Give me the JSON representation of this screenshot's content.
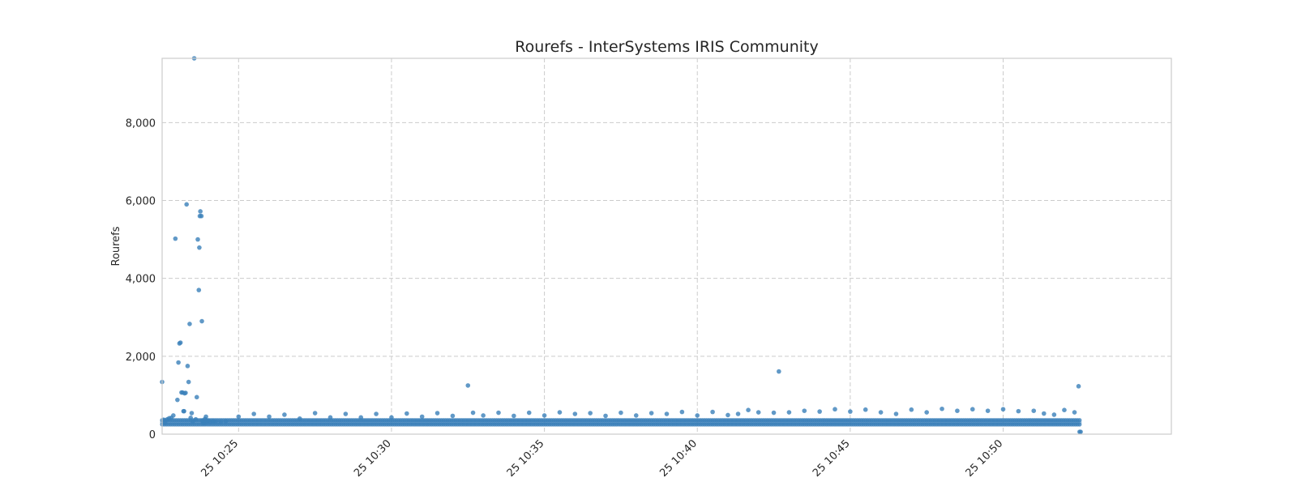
{
  "chart_data": {
    "type": "scatter",
    "title": "Rourefs - InterSystems IRIS Community",
    "xlabel": "",
    "ylabel": "Rourefs",
    "x_axis": {
      "kind": "datetime",
      "start": "10:22:30",
      "end": "10:55:30",
      "ticks": [
        "25 10:25",
        "25 10:30",
        "25 10:35",
        "25 10:40",
        "25 10:45",
        "25 10:50"
      ]
    },
    "y_axis": {
      "ylim": [
        0,
        9650
      ],
      "ticks": [
        0,
        2000,
        4000,
        6000,
        8000
      ],
      "tick_labels": [
        "0",
        "2,000",
        "4,000",
        "6,000",
        "8,000"
      ]
    },
    "grid": true,
    "grid_style": "dashed",
    "legend": "none",
    "marker_color": "#3a7fb9",
    "grid_color": "#cccccc",
    "frame_color": "#cccccc",
    "series": [
      {
        "x": [
          "10:22:30",
          "10:22:33",
          "10:22:36",
          "10:22:40",
          "10:22:44",
          "10:22:48",
          "10:22:52",
          "10:22:56",
          "10:23:00",
          "10:23:02",
          "10:23:04",
          "10:23:06",
          "10:23:08",
          "10:23:10",
          "10:23:12",
          "10:23:13",
          "10:23:14",
          "10:23:16",
          "10:23:18",
          "10:23:20",
          "10:23:22",
          "10:23:24",
          "10:23:26",
          "10:23:28",
          "10:23:30",
          "10:23:33",
          "10:23:36",
          "10:23:38",
          "10:23:40",
          "10:23:42",
          "10:23:43",
          "10:23:44",
          "10:23:45",
          "10:23:47",
          "10:23:48",
          "10:23:49",
          "10:23:50",
          "10:23:52",
          "10:23:54",
          "10:23:56",
          "10:23:58",
          "10:24:00",
          "10:24:05",
          "10:24:10",
          "10:24:15",
          "10:24:25",
          "10:24:35",
          "10:25:00",
          "10:25:30",
          "10:26:00",
          "10:26:30",
          "10:27:00",
          "10:27:30",
          "10:28:00",
          "10:28:30",
          "10:29:00",
          "10:29:30",
          "10:30:00",
          "10:30:30",
          "10:31:00",
          "10:31:30",
          "10:32:00",
          "10:32:30",
          "10:32:40",
          "10:33:00",
          "10:33:30",
          "10:34:00",
          "10:34:30",
          "10:35:00",
          "10:35:30",
          "10:36:00",
          "10:36:30",
          "10:37:00",
          "10:37:30",
          "10:38:00",
          "10:38:30",
          "10:39:00",
          "10:39:30",
          "10:40:00",
          "10:40:30",
          "10:41:00",
          "10:41:20",
          "10:41:40",
          "10:42:00",
          "10:42:30",
          "10:42:40",
          "10:43:00",
          "10:43:30",
          "10:44:00",
          "10:44:30",
          "10:45:00",
          "10:45:30",
          "10:46:00",
          "10:46:30",
          "10:47:00",
          "10:47:30",
          "10:48:00",
          "10:48:30",
          "10:49:00",
          "10:49:30",
          "10:50:00",
          "10:50:30",
          "10:51:00",
          "10:51:20",
          "10:51:40",
          "10:52:00",
          "10:52:20",
          "10:52:28",
          "10:52:30",
          "10:52:32"
        ],
        "y": [
          1340,
          370,
          290,
          380,
          410,
          420,
          480,
          5020,
          880,
          1840,
          2330,
          2350,
          1070,
          1070,
          590,
          590,
          1050,
          1060,
          5900,
          1750,
          1340,
          2830,
          420,
          540,
          320,
          9650,
          380,
          950,
          5000,
          3700,
          4790,
          5600,
          5720,
          5600,
          2900,
          350,
          300,
          280,
          390,
          450,
          300,
          350,
          310,
          330,
          320,
          310,
          330,
          450,
          520,
          450,
          500,
          400,
          540,
          430,
          520,
          430,
          520,
          430,
          530,
          450,
          540,
          470,
          1250,
          550,
          480,
          550,
          470,
          550,
          480,
          560,
          520,
          540,
          470,
          550,
          480,
          540,
          520,
          570,
          480,
          570,
          490,
          520,
          620,
          560,
          550,
          1610,
          560,
          600,
          580,
          640,
          580,
          630,
          560,
          520,
          630,
          560,
          650,
          600,
          640,
          600,
          640,
          590,
          600,
          530,
          500,
          620,
          560,
          1230,
          60,
          60
        ]
      },
      {
        "x_start": "10:22:30",
        "x_end": "10:52:30",
        "baseline_low": 250,
        "baseline_high": 360
      }
    ]
  }
}
